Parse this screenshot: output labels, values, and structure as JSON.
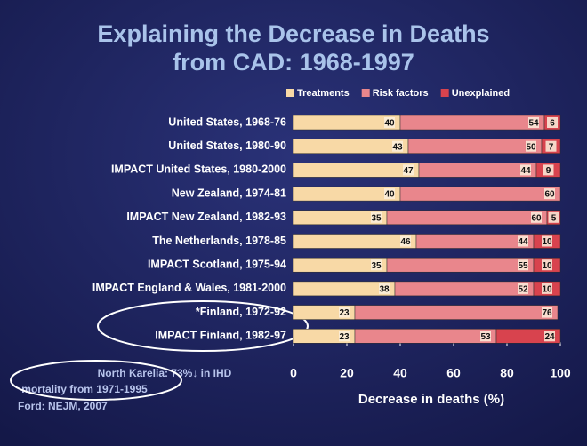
{
  "chart_data": {
    "type": "stacked_barh",
    "title": [
      "Explaining the Decrease in Deaths",
      "from CAD:  1968-1997"
    ],
    "categories": [
      "United States, 1968-76",
      "United States, 1980-90",
      "IMPACT United States, 1980-2000",
      "New Zealand, 1974-81",
      "IMPACT New Zealand, 1982-93",
      "The Netherlands, 1978-85",
      "IMPACT Scotland, 1975-94",
      "IMPACT England & Wales, 1981-2000",
      "*Finland, 1972-92",
      "IMPACT Finland, 1982-97"
    ],
    "series": [
      {
        "name": "Treatments",
        "color": "#f8d9a6",
        "values": [
          40,
          43,
          47,
          40,
          35,
          46,
          35,
          38,
          23,
          23
        ]
      },
      {
        "name": "Risk factors",
        "color": "#e9868c",
        "values": [
          54,
          50,
          44,
          60,
          60,
          44,
          55,
          52,
          76,
          53
        ]
      },
      {
        "name": "Unexplained",
        "color": "#d8434e",
        "values": [
          6,
          7,
          9,
          null,
          5,
          10,
          10,
          10,
          null,
          24
        ]
      }
    ],
    "xlim": [
      0,
      100
    ],
    "xticks": [
      0,
      20,
      40,
      60,
      80,
      100
    ],
    "xlabel": "Decrease in deaths (%)",
    "legend": "top",
    "annotations": [
      [
        "North Karelia: 73%↓ in IHD",
        "mortality from 1971-1995"
      ],
      "Ford: NEJM, 2007"
    ]
  }
}
